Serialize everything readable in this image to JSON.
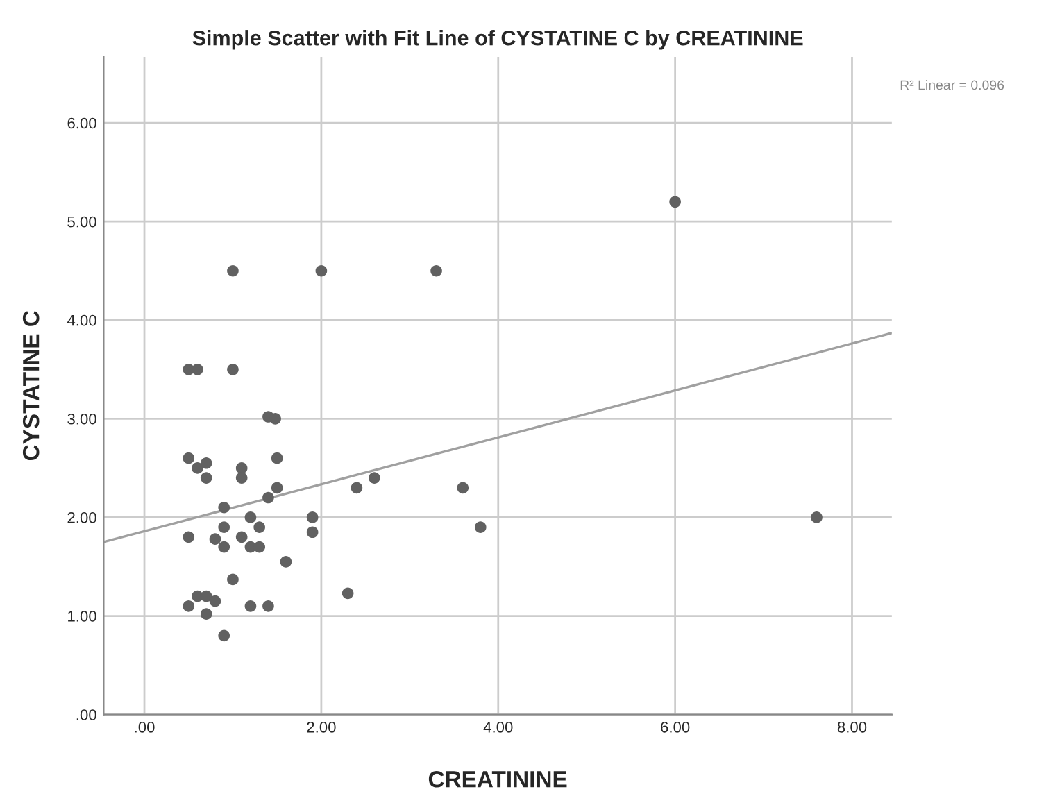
{
  "chart_data": {
    "type": "scatter",
    "title": "Simple Scatter with Fit Line of CYSTATINE C by CREATININE",
    "xlabel": "CREATININE",
    "ylabel": "CYSTATINE C",
    "annotations": [
      "R² Linear = 0.096"
    ],
    "xlim": [
      -0.46,
      8.45
    ],
    "ylim": [
      0,
      6.67
    ],
    "xticks": [
      {
        "value": 0,
        "label": ".00"
      },
      {
        "value": 2,
        "label": "2.00"
      },
      {
        "value": 4,
        "label": "4.00"
      },
      {
        "value": 6,
        "label": "6.00"
      },
      {
        "value": 8,
        "label": "8.00"
      }
    ],
    "yticks": [
      {
        "value": 0,
        "label": ".00"
      },
      {
        "value": 1,
        "label": "1.00"
      },
      {
        "value": 2,
        "label": "2.00"
      },
      {
        "value": 3,
        "label": "3.00"
      },
      {
        "value": 4,
        "label": "4.00"
      },
      {
        "value": 5,
        "label": "5.00"
      },
      {
        "value": 6,
        "label": "6.00"
      }
    ],
    "grid": true,
    "series": [
      {
        "marker": "circle",
        "color": "#616161",
        "x": [
          1.0,
          2.0,
          3.3,
          6.0,
          0.5,
          0.6,
          1.0,
          1.4,
          1.48,
          0.5,
          0.6,
          0.7,
          0.7,
          1.1,
          1.1,
          1.5,
          1.5,
          1.4,
          0.9,
          0.9,
          0.5,
          0.8,
          0.9,
          1.1,
          1.2,
          1.3,
          1.2,
          1.3,
          1.6,
          1.9,
          1.9,
          2.4,
          2.6,
          3.6,
          3.8,
          7.6,
          2.3,
          1.0,
          0.5,
          0.6,
          0.7,
          0.8,
          0.7,
          1.2,
          1.4,
          0.9
        ],
        "values": [
          4.5,
          4.5,
          4.5,
          5.2,
          3.5,
          3.5,
          3.5,
          3.02,
          3.0,
          2.6,
          2.5,
          2.55,
          2.4,
          2.5,
          2.4,
          2.6,
          2.3,
          2.2,
          2.1,
          1.9,
          1.8,
          1.78,
          1.7,
          1.8,
          2.0,
          1.9,
          1.7,
          1.7,
          1.55,
          2.0,
          1.85,
          2.3,
          2.4,
          2.3,
          1.9,
          2.0,
          1.23,
          1.37,
          1.1,
          1.2,
          1.2,
          1.15,
          1.02,
          1.1,
          1.1,
          0.8
        ]
      },
      {
        "type": "line",
        "color": "#a0a0a0",
        "x": [
          -0.46,
          8.45
        ],
        "values": [
          1.75,
          3.87
        ]
      }
    ]
  }
}
